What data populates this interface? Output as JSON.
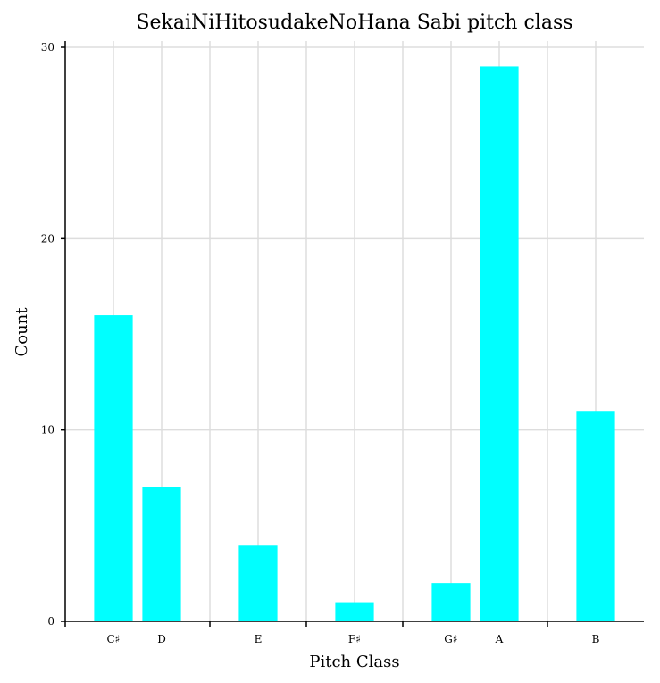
{
  "chart_data": {
    "type": "bar",
    "title": "SekaiNiHitosudakeNoHana Sabi pitch class",
    "xlabel": "Pitch Class",
    "ylabel": "Count",
    "categories": [
      "C♯",
      "D",
      "E",
      "F♯",
      "G♯",
      "A",
      "B"
    ],
    "x": [
      1,
      2,
      4,
      6,
      8,
      9,
      11
    ],
    "values": [
      16,
      7,
      4,
      1,
      2,
      29,
      11
    ],
    "xlim": [
      0,
      12
    ],
    "ylim": [
      0,
      30
    ],
    "yticks": [
      0,
      10,
      20,
      30
    ],
    "xgrid": [
      1,
      2,
      3,
      4,
      5,
      6,
      7,
      8,
      9,
      10,
      11
    ],
    "grid": true,
    "bar_color": "#00ffff"
  }
}
